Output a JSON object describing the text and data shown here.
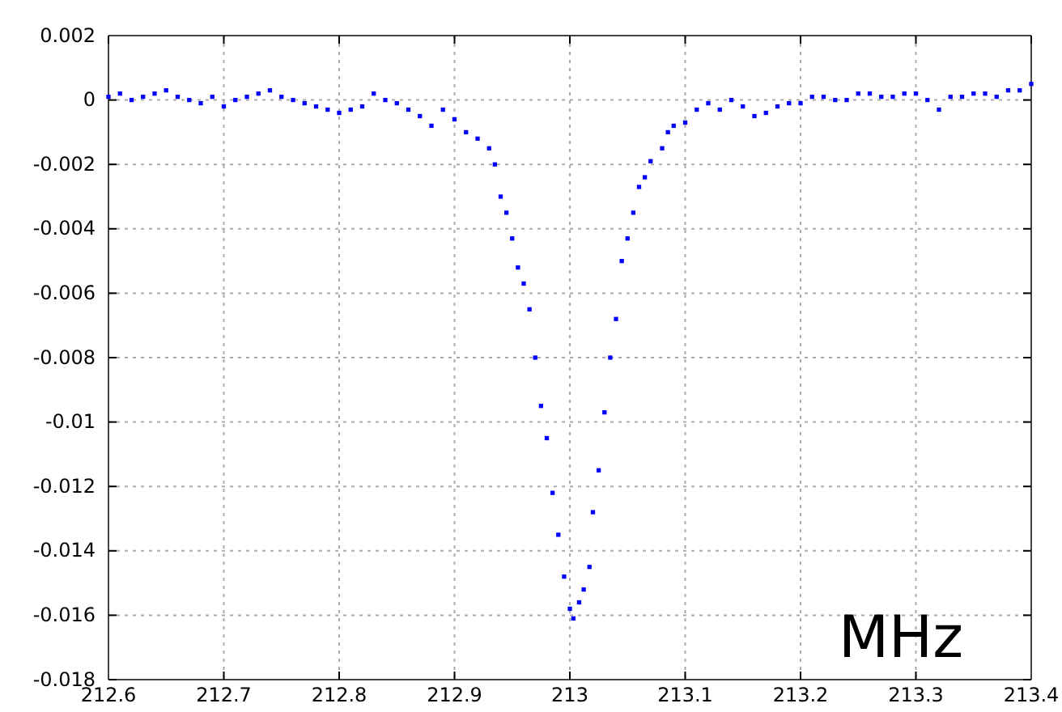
{
  "chart_data": {
    "type": "scatter",
    "marker": "square",
    "grid": true,
    "annotations": [
      "MHz"
    ],
    "xlim": [
      212.6,
      213.4
    ],
    "xticks": [
      212.6,
      212.7,
      212.8,
      212.9,
      213,
      213.1,
      213.2,
      213.3,
      213.4
    ],
    "ylim": [
      -0.018,
      0.002
    ],
    "yticks": [
      -0.018,
      -0.016,
      -0.014,
      -0.012,
      -0.01,
      -0.008,
      -0.006,
      -0.004,
      -0.002,
      0,
      0.002
    ],
    "series": [
      {
        "color": "#0000ff",
        "x": [
          212.6,
          212.61,
          212.62,
          212.63,
          212.64,
          212.65,
          212.66,
          212.67,
          212.68,
          212.69,
          212.7,
          212.71,
          212.72,
          212.73,
          212.74,
          212.75,
          212.76,
          212.77,
          212.78,
          212.79,
          212.8,
          212.81,
          212.82,
          212.83,
          212.84,
          212.85,
          212.86,
          212.87,
          212.88,
          212.89,
          212.9,
          212.91,
          212.92,
          212.93,
          212.935,
          212.94,
          212.945,
          212.95,
          212.955,
          212.96,
          212.965,
          212.97,
          212.975,
          212.98,
          212.985,
          212.99,
          212.995,
          213,
          213.003,
          213.008,
          213.012,
          213.017,
          213.02,
          213.025,
          213.03,
          213.035,
          213.04,
          213.045,
          213.05,
          213.055,
          213.06,
          213.065,
          213.07,
          213.08,
          213.085,
          213.09,
          213.1,
          213.11,
          213.12,
          213.13,
          213.14,
          213.15,
          213.16,
          213.17,
          213.18,
          213.19,
          213.2,
          213.21,
          213.22,
          213.23,
          213.24,
          213.25,
          213.26,
          213.27,
          213.28,
          213.29,
          213.3,
          213.31,
          213.32,
          213.33,
          213.34,
          213.35,
          213.36,
          213.37,
          213.38,
          213.39,
          213.4
        ],
        "values": [
          0.0001,
          0.0002,
          0,
          0.0001,
          0.0002,
          0.0003,
          0.0001,
          0,
          -0.0001,
          0.0001,
          -0.0002,
          0,
          0.0001,
          0.0002,
          0.0003,
          0.0001,
          0,
          -0.0001,
          -0.0002,
          -0.0003,
          -0.0004,
          -0.0003,
          -0.0002,
          0.0002,
          0,
          -0.0001,
          -0.0003,
          -0.0005,
          -0.0008,
          -0.0003,
          -0.0006,
          -0.001,
          -0.0012,
          -0.0015,
          -0.002,
          -0.003,
          -0.0035,
          -0.0043,
          -0.0052,
          -0.0057,
          -0.0065,
          -0.008,
          -0.0095,
          -0.0105,
          -0.0122,
          -0.0135,
          -0.0148,
          -0.0158,
          -0.0161,
          -0.0156,
          -0.0152,
          -0.0145,
          -0.0128,
          -0.0115,
          -0.0097,
          -0.008,
          -0.0068,
          -0.005,
          -0.0043,
          -0.0035,
          -0.0027,
          -0.0024,
          -0.0019,
          -0.0015,
          -0.001,
          -0.0008,
          -0.0007,
          -0.0003,
          -0.0001,
          -0.0003,
          0,
          -0.0002,
          -0.0005,
          -0.0004,
          -0.0002,
          -0.0001,
          -0.0001,
          0.0001,
          0.0001,
          0,
          0,
          0.0002,
          0.0002,
          0.0001,
          0.0001,
          0.0002,
          0.0002,
          0,
          -0.0003,
          0.0001,
          0.0001,
          0.0002,
          0.0002,
          0.0001,
          0.0003,
          0.0003,
          0.0005
        ]
      }
    ]
  }
}
